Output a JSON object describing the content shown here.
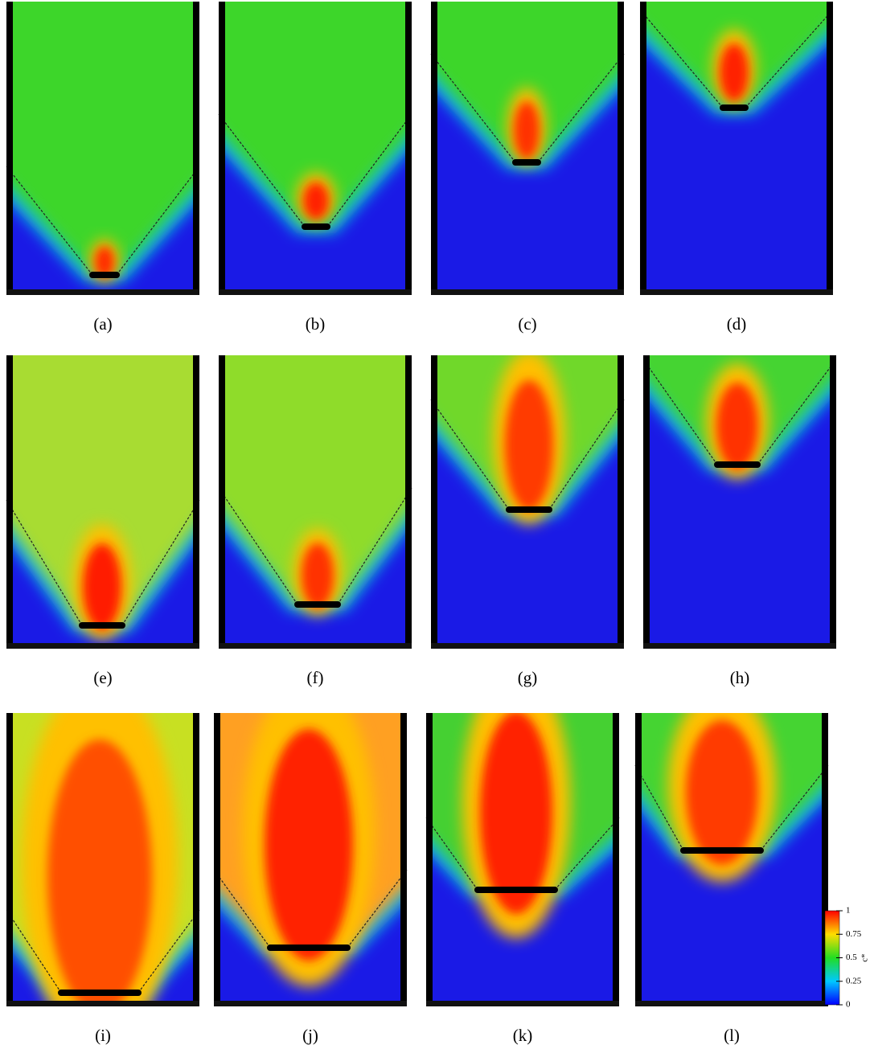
{
  "panels": [
    {
      "label": "(a)"
    },
    {
      "label": "(b)"
    },
    {
      "label": "(c)"
    },
    {
      "label": "(d)"
    },
    {
      "label": "(e)"
    },
    {
      "label": "(f)"
    },
    {
      "label": "(g)"
    },
    {
      "label": "(h)"
    },
    {
      "label": "(i)"
    },
    {
      "label": "(j)"
    },
    {
      "label": "(k)"
    },
    {
      "label": "(l)"
    }
  ],
  "colorbar": {
    "range": [
      0,
      1
    ],
    "ticks": [
      0,
      0.25,
      0.5,
      0.75,
      1
    ],
    "label": "c*"
  }
}
